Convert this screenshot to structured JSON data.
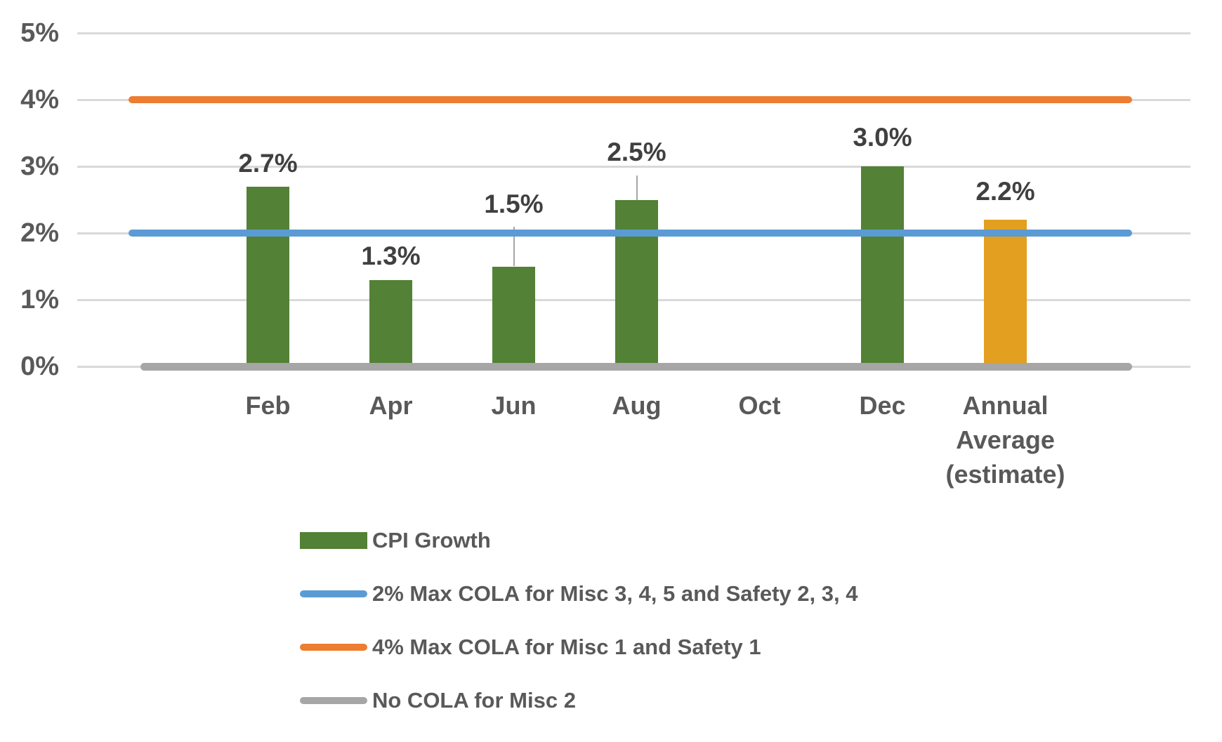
{
  "chart_data": {
    "type": "bar",
    "title": "",
    "categories": [
      "Feb",
      "Apr",
      "Jun",
      "Aug",
      "Oct",
      "Dec",
      "Annual Average (estimate)"
    ],
    "series": [
      {
        "name": "CPI Growth",
        "type": "bar",
        "values": [
          2.7,
          1.3,
          1.5,
          2.5,
          null,
          3.0,
          2.2
        ],
        "data_labels": [
          "2.7%",
          "1.3%",
          "1.5%",
          "2.5%",
          "",
          "3.0%",
          "2.2%"
        ],
        "point_colors": [
          "#538135",
          "#538135",
          "#538135",
          "#538135",
          null,
          "#538135",
          "#E39F20"
        ]
      },
      {
        "name": "2% Max COLA for Misc 3, 4, 5 and Safety 2, 3, 4",
        "type": "line",
        "value": 2,
        "color": "#5B9BD5"
      },
      {
        "name": "4% Max COLA for Misc 1 and Safety 1",
        "type": "line",
        "value": 4,
        "color": "#ED7D31"
      },
      {
        "name": "No COLA for Misc 2",
        "type": "line",
        "value": 0,
        "color": "#A6A6A6"
      }
    ],
    "ylim": [
      0,
      5
    ],
    "ytick_labels": [
      "0%",
      "1%",
      "2%",
      "3%",
      "4%",
      "5%"
    ],
    "grid": true,
    "gridline_color": "#D9D9D9",
    "legend_position": "bottom-left",
    "legend": [
      {
        "label": "CPI Growth",
        "swatch": "bar",
        "color": "#538135"
      },
      {
        "label": "2% Max COLA for Misc 3, 4, 5 and Safety 2, 3, 4",
        "swatch": "line",
        "color": "#5B9BD5"
      },
      {
        "label": "4% Max COLA for Misc 1 and Safety 1",
        "swatch": "line",
        "color": "#ED7D31"
      },
      {
        "label": "No COLA for Misc 2",
        "swatch": "line",
        "color": "#A6A6A6"
      }
    ]
  }
}
